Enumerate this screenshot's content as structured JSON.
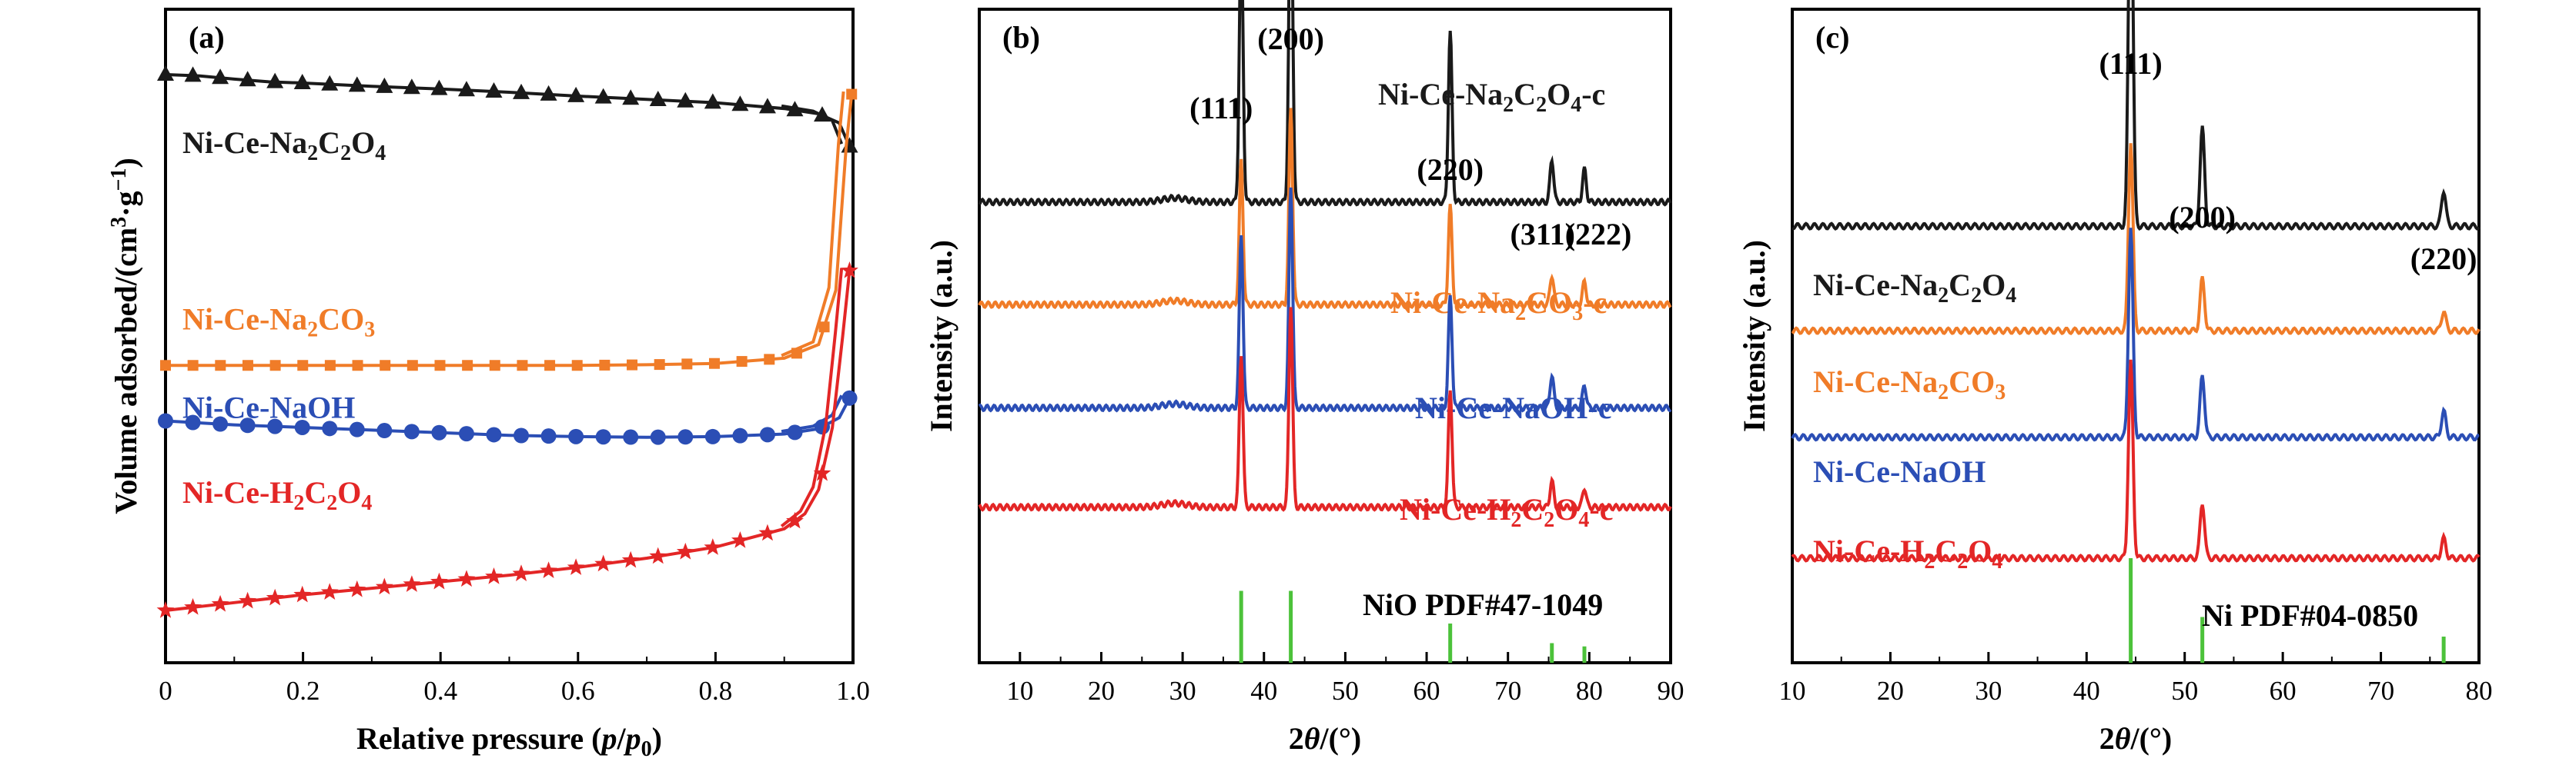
{
  "chart_data": [
    {
      "panel": "(a)",
      "type": "line",
      "xlabel": {
        "pre": "Relative pressure (",
        "italic1": "p",
        "mid": "/",
        "italic2": "p",
        "sub": "0",
        "post": ")"
      },
      "ylabel": {
        "pre": "Volume adsorbed/(cm",
        "sup": "3",
        "post": "·g",
        "sup2": "−1",
        "post2": ")"
      },
      "xlim": [
        0,
        1.0
      ],
      "xticks": [
        "0",
        "0.2",
        "0.4",
        "0.6",
        "0.8",
        "1.0"
      ],
      "xtick_values": [
        0,
        0.2,
        0.4,
        0.6,
        0.8,
        1.0
      ],
      "series": [
        {
          "name": "Ni-Ce-Na2C2O4",
          "label_parts": [
            "Ni-Ce-Na",
            "2",
            "C",
            "2",
            "O",
            "4"
          ],
          "color": "#1a1a1a",
          "marker": "triangle",
          "points": [
            [
              0.0,
              0.9
            ],
            [
              0.05,
              0.898
            ],
            [
              0.1,
              0.893
            ],
            [
              0.15,
              0.889
            ],
            [
              0.2,
              0.887
            ],
            [
              0.3,
              0.882
            ],
            [
              0.4,
              0.878
            ],
            [
              0.5,
              0.873
            ],
            [
              0.6,
              0.867
            ],
            [
              0.7,
              0.862
            ],
            [
              0.8,
              0.857
            ],
            [
              0.9,
              0.848
            ],
            [
              0.95,
              0.84
            ],
            [
              0.98,
              0.826
            ],
            [
              0.995,
              0.79
            ]
          ]
        },
        {
          "name": "Ni-Ce-Na2CO3",
          "label_parts": [
            "Ni-Ce-Na",
            "2",
            "C",
            "O",
            "3"
          ],
          "color": "#f07c28",
          "marker": "square",
          "points": [
            [
              0.0,
              0.455
            ],
            [
              0.1,
              0.455
            ],
            [
              0.2,
              0.455
            ],
            [
              0.3,
              0.455
            ],
            [
              0.4,
              0.455
            ],
            [
              0.5,
              0.455
            ],
            [
              0.6,
              0.455
            ],
            [
              0.7,
              0.456
            ],
            [
              0.8,
              0.458
            ],
            [
              0.9,
              0.466
            ],
            [
              0.95,
              0.487
            ],
            [
              0.975,
              0.57
            ],
            [
              0.99,
              0.79
            ],
            [
              0.998,
              0.87
            ]
          ]
        },
        {
          "name": "Ni-Ce-NaOH",
          "label_parts": [
            "Ni-Ce-NaOH"
          ],
          "color": "#2b4eb5",
          "marker": "circle",
          "points": [
            [
              0.0,
              0.37
            ],
            [
              0.1,
              0.364
            ],
            [
              0.2,
              0.36
            ],
            [
              0.3,
              0.356
            ],
            [
              0.4,
              0.352
            ],
            [
              0.5,
              0.348
            ],
            [
              0.6,
              0.346
            ],
            [
              0.7,
              0.345
            ],
            [
              0.8,
              0.346
            ],
            [
              0.9,
              0.35
            ],
            [
              0.95,
              0.358
            ],
            [
              0.98,
              0.375
            ],
            [
              0.995,
              0.405
            ]
          ]
        },
        {
          "name": "Ni-Ce-H2C2O4",
          "label_parts": [
            "Ni-Ce-H",
            "2",
            "C",
            "2",
            "O",
            "4"
          ],
          "color": "#e32626",
          "marker": "star",
          "points": [
            [
              0.0,
              0.08
            ],
            [
              0.1,
              0.092
            ],
            [
              0.2,
              0.104
            ],
            [
              0.3,
              0.114
            ],
            [
              0.4,
              0.124
            ],
            [
              0.5,
              0.134
            ],
            [
              0.6,
              0.146
            ],
            [
              0.7,
              0.16
            ],
            [
              0.8,
              0.177
            ],
            [
              0.9,
              0.205
            ],
            [
              0.93,
              0.228
            ],
            [
              0.95,
              0.265
            ],
            [
              0.97,
              0.36
            ],
            [
              0.985,
              0.5
            ],
            [
              0.995,
              0.6
            ]
          ]
        }
      ]
    },
    {
      "panel": "(b)",
      "type": "line",
      "xlabel": {
        "pre": "2",
        "italic": "θ",
        "post": "/(°)"
      },
      "ylabel": "Intensity (a.u.)",
      "xlim": [
        5,
        90
      ],
      "xticks": [
        "10",
        "20",
        "30",
        "40",
        "50",
        "60",
        "70",
        "80",
        "90"
      ],
      "xtick_values": [
        10,
        20,
        30,
        40,
        50,
        60,
        70,
        80,
        90
      ],
      "peak_labels": [
        {
          "text": "(111)",
          "x": 37.2
        },
        {
          "text": "(200)",
          "x": 43.3
        },
        {
          "text": "(220)",
          "x": 62.9
        },
        {
          "text": "(311)",
          "x": 75.4
        },
        {
          "text": "(222)",
          "x": 79.4
        }
      ],
      "peaks": [
        {
          "x": 37.2,
          "h": [
            0.42,
            0.22,
            0.265,
            0.235
          ]
        },
        {
          "x": 43.3,
          "h": [
            0.545,
            0.3,
            0.34,
            0.31
          ]
        },
        {
          "x": 62.9,
          "h": [
            0.26,
            0.15,
            0.17,
            0.18
          ]
        },
        {
          "x": 75.4,
          "h": [
            0.065,
            0.045,
            0.05,
            0.04
          ]
        },
        {
          "x": 79.4,
          "h": [
            0.05,
            0.035,
            0.035,
            0.03
          ]
        }
      ],
      "series": [
        {
          "name": "Ni-Ce-Na2C2O4-c",
          "label_parts": [
            "Ni-Ce-Na",
            "2",
            "C",
            "2",
            "O",
            "4",
            "-c"
          ],
          "color": "#1a1a1a",
          "baseline": 0.705
        },
        {
          "name": "Ni-Ce-Na2CO3-c",
          "label_parts": [
            "Ni-Ce-Na",
            "2",
            "C",
            "O",
            "3",
            "-c"
          ],
          "color": "#f07c28",
          "baseline": 0.548
        },
        {
          "name": "Ni-Ce-NaOH-c",
          "label_parts": [
            "Ni-Ce-NaOH-c"
          ],
          "color": "#2b4eb5",
          "baseline": 0.39
        },
        {
          "name": "Ni-Ce-H2C2O4-c",
          "label_parts": [
            "Ni-Ce-H",
            "2",
            "C",
            "2",
            "O",
            "4",
            "-c"
          ],
          "color": "#e32626",
          "baseline": 0.238
        }
      ],
      "reference": {
        "name": "NiO PDF#47-1049",
        "color": "#4cc23a",
        "lines": [
          [
            37.2,
            0.11
          ],
          [
            43.3,
            0.11
          ],
          [
            62.9,
            0.06
          ],
          [
            75.4,
            0.03
          ],
          [
            79.4,
            0.025
          ]
        ]
      }
    },
    {
      "panel": "(c)",
      "type": "line",
      "xlabel": {
        "pre": "2",
        "italic": "θ",
        "post": "/(°)"
      },
      "ylabel": "Intensity (a.u.)",
      "xlim": [
        10,
        80
      ],
      "xticks": [
        "10",
        "20",
        "30",
        "40",
        "50",
        "60",
        "70",
        "80"
      ],
      "xtick_values": [
        10,
        20,
        30,
        40,
        50,
        60,
        70,
        80
      ],
      "peak_labels": [
        {
          "text": "(111)",
          "x": 44.5
        },
        {
          "text": "(200)",
          "x": 51.8
        },
        {
          "text": "(220)",
          "x": 76.4
        }
      ],
      "peaks": [
        {
          "x": 44.5,
          "h": [
            0.59,
            0.29,
            0.32,
            0.3
          ]
        },
        {
          "x": 51.8,
          "h": [
            0.15,
            0.08,
            0.095,
            0.085
          ]
        },
        {
          "x": 76.4,
          "h": [
            0.055,
            0.03,
            0.04,
            0.03
          ]
        }
      ],
      "series": [
        {
          "name": "Ni-Ce-Na2C2O4",
          "label_parts": [
            "Ni-Ce-Na",
            "2",
            "C",
            "2",
            "O",
            "4"
          ],
          "color": "#1a1a1a",
          "baseline": 0.668
        },
        {
          "name": "Ni-Ce-Na2CO3",
          "label_parts": [
            "Ni-Ce-Na",
            "2",
            "C",
            "O",
            "3"
          ],
          "color": "#f07c28",
          "baseline": 0.508
        },
        {
          "name": "Ni-Ce-NaOH",
          "label_parts": [
            "Ni-Ce-NaOH"
          ],
          "color": "#2b4eb5",
          "baseline": 0.345
        },
        {
          "name": "Ni-Ce-H2C2O4",
          "label_parts": [
            "Ni-Ce-H",
            "2",
            "C",
            "2",
            "O",
            "4"
          ],
          "color": "#e32626",
          "baseline": 0.16
        }
      ],
      "reference": {
        "name": "Ni PDF#04-0850",
        "color": "#4cc23a",
        "lines": [
          [
            44.5,
            0.16
          ],
          [
            51.8,
            0.07
          ],
          [
            76.4,
            0.04
          ]
        ]
      }
    }
  ]
}
